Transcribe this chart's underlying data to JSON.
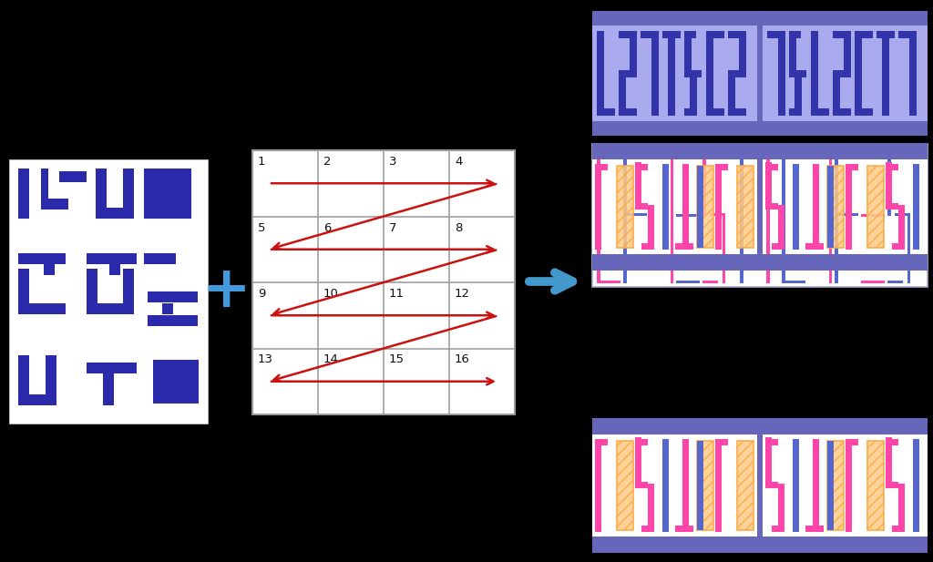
{
  "bg_color": "#000000",
  "chip_color": "#2a2aaa",
  "chip_bg": "#ffffff",
  "plus_color": "#4499dd",
  "grid_bg": "#ffffff",
  "grid_border": "#999999",
  "arrow_red": "#cc1111",
  "arrow_blue": "#4499cc",
  "rtop_bg": "#aaaaee",
  "rtop_bar": "#6666bb",
  "rtop_shape_fill": "#8888dd",
  "rtop_shape_edge": "#3333aa",
  "rmid_bg": "#ffffff",
  "rmid_pink": "#ff44aa",
  "rmid_blue": "#5566cc",
  "rmid_border": "#aaaacc",
  "rbot_bar": "#6666bb",
  "rbot_bg": "#ffffff",
  "rbot_pink": "#ff44aa",
  "rbot_orange_fill": "#ffcc88",
  "rbot_orange_edge": "#ffaa44",
  "rbot_blue": "#5566cc"
}
